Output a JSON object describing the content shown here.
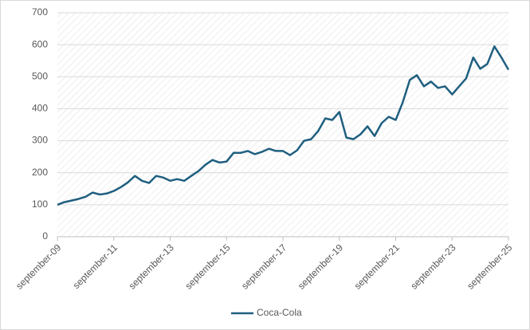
{
  "chart_data": {
    "type": "line",
    "categories": [
      "september-09",
      null,
      null,
      null,
      null,
      null,
      null,
      null,
      "september-11",
      null,
      null,
      null,
      null,
      null,
      null,
      null,
      "september-13",
      null,
      null,
      null,
      null,
      null,
      null,
      null,
      "september-15",
      null,
      null,
      null,
      null,
      null,
      null,
      null,
      "september-17",
      null,
      null,
      null,
      null,
      null,
      null,
      null,
      "september-19",
      null,
      null,
      null,
      null,
      null,
      null,
      null,
      "september-21",
      null,
      null,
      null,
      null,
      null,
      null,
      null,
      "september-23",
      null,
      null,
      null,
      null,
      null,
      null,
      null,
      "september-25"
    ],
    "series": [
      {
        "name": "Coca-Cola",
        "color": "#1f5f80",
        "values": [
          100,
          108,
          113,
          118,
          125,
          138,
          132,
          135,
          143,
          155,
          170,
          190,
          175,
          168,
          190,
          185,
          175,
          180,
          175,
          190,
          205,
          225,
          240,
          232,
          235,
          262,
          262,
          268,
          258,
          265,
          275,
          268,
          268,
          255,
          270,
          300,
          305,
          330,
          370,
          365,
          390,
          310,
          305,
          320,
          345,
          315,
          355,
          375,
          365,
          420,
          490,
          505,
          470,
          485,
          465,
          470,
          445,
          470,
          495,
          560,
          525,
          540,
          595,
          560,
          522
        ]
      }
    ],
    "ylim": [
      0,
      700
    ],
    "yticks": [
      0,
      100,
      200,
      300,
      400,
      500,
      600,
      700
    ],
    "grid": true,
    "legend": "bottom"
  }
}
